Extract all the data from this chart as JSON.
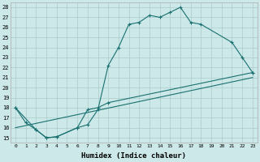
{
  "xlabel": "Humidex (Indice chaleur)",
  "bg_color": "#cce8e8",
  "line_color": "#1a7070",
  "grid_color": "#aacccc",
  "xlim": [
    -0.5,
    23.5
  ],
  "ylim": [
    14.5,
    28.5
  ],
  "xticks": [
    0,
    1,
    2,
    3,
    4,
    5,
    6,
    7,
    8,
    9,
    10,
    11,
    12,
    13,
    14,
    15,
    16,
    17,
    18,
    19,
    20,
    21,
    22,
    23
  ],
  "yticks": [
    15,
    16,
    17,
    18,
    19,
    20,
    21,
    22,
    23,
    24,
    25,
    26,
    27,
    28
  ],
  "line1_x": [
    0,
    1,
    2,
    3,
    4,
    6,
    7,
    8,
    9,
    10,
    11,
    12,
    13,
    14,
    15,
    16,
    17,
    18,
    21,
    22,
    23
  ],
  "line1_y": [
    18,
    16.5,
    15.8,
    15.0,
    15.1,
    16.0,
    16.3,
    17.8,
    22.2,
    24.0,
    26.3,
    26.5,
    27.2,
    27.0,
    27.5,
    28.0,
    26.5,
    26.3,
    24.5,
    23.0,
    21.5
  ],
  "line2_x": [
    0,
    2,
    3,
    4,
    6,
    7,
    8,
    9,
    23
  ],
  "line2_y": [
    18.0,
    15.8,
    15.0,
    15.1,
    16.0,
    17.8,
    18.0,
    18.5,
    21.5
  ],
  "line3_x": [
    0,
    23
  ],
  "line3_y": [
    16.0,
    21.0
  ],
  "marker": "+"
}
